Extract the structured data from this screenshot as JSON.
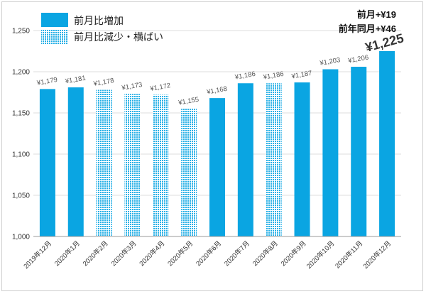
{
  "chart_data": {
    "type": "bar",
    "title": "",
    "xlabel": "",
    "ylabel": "",
    "ylim": [
      1000,
      1250
    ],
    "yticks": [
      "1,000",
      "1,050",
      "1,100",
      "1,150",
      "1,200",
      "1,250"
    ],
    "ytick_values": [
      1000,
      1050,
      1100,
      1150,
      1200,
      1250
    ],
    "categories": [
      "2019年12月",
      "2020年1月",
      "2020年2月",
      "2020年3月",
      "2020年4月",
      "2020年5月",
      "2020年6月",
      "2020年7月",
      "2020年8月",
      "2020年9月",
      "2020年10月",
      "2020年11月",
      "2020年12月"
    ],
    "values": [
      1179,
      1181,
      1178,
      1173,
      1172,
      1155,
      1168,
      1186,
      1186,
      1187,
      1203,
      1206,
      1225
    ],
    "value_labels": [
      "¥1,179",
      "¥1,181",
      "¥1,178",
      "¥1,173",
      "¥1,172",
      "¥1,155",
      "¥1,168",
      "¥1,186",
      "¥1,186",
      "¥1,187",
      "¥1,203",
      "¥1,206",
      "¥1,225"
    ],
    "series_kind": [
      "increase",
      "increase",
      "decrease",
      "decrease",
      "decrease",
      "decrease",
      "increase",
      "increase",
      "decrease",
      "increase",
      "increase",
      "increase",
      "increase"
    ],
    "legend": [
      {
        "key": "increase",
        "label": "前月比増加"
      },
      {
        "key": "decrease",
        "label": "前月比減少・横ばい"
      }
    ],
    "annotations": [
      "前月+¥19",
      "前年同月+¥46"
    ],
    "colors": {
      "increase": "#0aa5e2",
      "decrease": "#7fd0f0",
      "grid": "#dddddd",
      "axis": "#999999"
    }
  }
}
